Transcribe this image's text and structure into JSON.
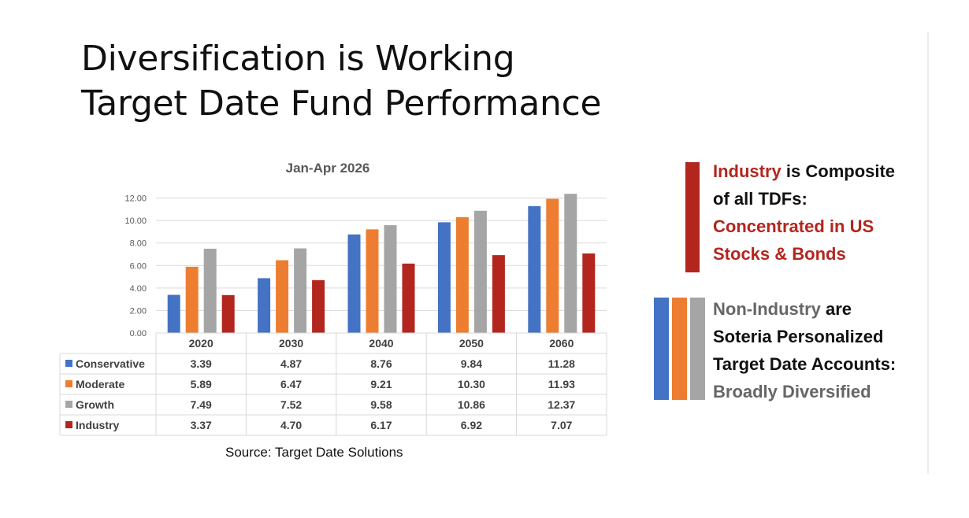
{
  "slide": {
    "title_line1": "Diversification is Working",
    "title_line2": "Target Date Fund Performance",
    "source": "Source: Target Date Solutions"
  },
  "callouts": {
    "industry": {
      "w1": "Industry",
      "w2": " is Composite",
      "line2": "of all TDFs:",
      "line3": "Concentrated in US",
      "line4": "Stocks & Bonds"
    },
    "non_industry": {
      "w1": "Non-Industry",
      "w2": " are",
      "line2": "Soteria Personalized",
      "line3": "Target Date Accounts:",
      "line4": "Broadly Diversified"
    }
  },
  "colors": {
    "conservative": "#4472c4",
    "moderate": "#ed7d31",
    "growth": "#a5a5a5",
    "industry": "#b3261e"
  },
  "chart_data": {
    "type": "bar",
    "title": "Jan-Apr 2026",
    "categories": [
      "2020",
      "2030",
      "2040",
      "2050",
      "2060"
    ],
    "series": [
      {
        "name": "Conservative",
        "values": [
          3.39,
          4.87,
          8.76,
          9.84,
          11.28
        ],
        "value_labels": [
          "3.39",
          "4.87",
          "8.76",
          "9.84",
          "11.28"
        ]
      },
      {
        "name": "Moderate",
        "values": [
          5.89,
          6.47,
          9.21,
          10.3,
          11.93
        ],
        "value_labels": [
          "5.89",
          "6.47",
          "9.21",
          "10.30",
          "11.93"
        ]
      },
      {
        "name": "Growth",
        "values": [
          7.49,
          7.52,
          9.58,
          10.86,
          12.37
        ],
        "value_labels": [
          "7.49",
          "7.52",
          "9.58",
          "10.86",
          "12.37"
        ]
      },
      {
        "name": "Industry",
        "values": [
          3.37,
          4.7,
          6.17,
          6.92,
          7.07
        ],
        "value_labels": [
          "3.37",
          "4.70",
          "6.17",
          "6.92",
          "7.07"
        ]
      }
    ],
    "ylim": [
      0,
      12
    ],
    "yticks": [
      "0.00",
      "2.00",
      "4.00",
      "6.00",
      "8.00",
      "10.00",
      "12.00"
    ],
    "grid": true,
    "legend": "data-table"
  }
}
